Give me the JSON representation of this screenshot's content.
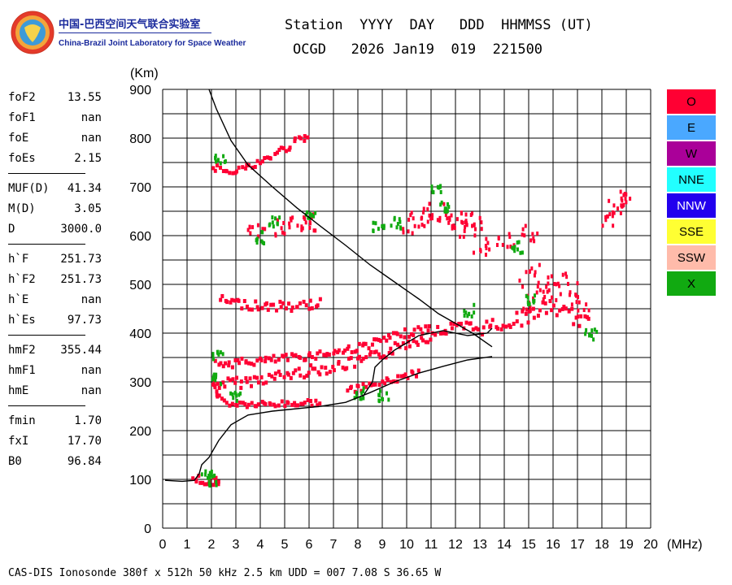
{
  "logo": {
    "title_cn": "中国-巴西空间天气联合实验室",
    "title_en": "China-Brazil Joint Laboratory for Space Weather"
  },
  "header": {
    "labels": "Station  YYYY  DAY   DDD  HHMMSS (UT)",
    "values": "OCGD   2026 Jan19  019  221500"
  },
  "params": [
    {
      "label": "foF2",
      "value": "13.55"
    },
    {
      "label": "foF1",
      "value": "nan"
    },
    {
      "label": "foE",
      "value": "nan"
    },
    {
      "label": "foEs",
      "value": "2.15"
    },
    {
      "sep": true
    },
    {
      "label": "MUF(D)",
      "value": "41.34"
    },
    {
      "label": "M(D)",
      "value": "3.05"
    },
    {
      "label": "D",
      "value": "3000.0"
    },
    {
      "sep": true
    },
    {
      "label": "h`F",
      "value": "251.73"
    },
    {
      "label": "h`F2",
      "value": "251.73"
    },
    {
      "label": "h`E",
      "value": "nan"
    },
    {
      "label": "h`Es",
      "value": "97.73"
    },
    {
      "sep": true
    },
    {
      "label": "hmF2",
      "value": "355.44"
    },
    {
      "label": "hmF1",
      "value": "nan"
    },
    {
      "label": "hmE",
      "value": "nan"
    },
    {
      "sep": true
    },
    {
      "label": "fmin",
      "value": "1.70"
    },
    {
      "label": "fxI",
      "value": "17.70"
    },
    {
      "label": "B0",
      "value": "96.84"
    }
  ],
  "legend": [
    {
      "label": "O",
      "color": "#ff0033",
      "text_color": "#000000"
    },
    {
      "label": "E",
      "color": "#4aa8ff",
      "text_color": "#000000"
    },
    {
      "label": "W",
      "color": "#aa0099",
      "text_color": "#000000"
    },
    {
      "label": "NNE",
      "color": "#22ffff",
      "text_color": "#000000"
    },
    {
      "label": "NNW",
      "color": "#2200ee",
      "text_color": "#ffffff"
    },
    {
      "label": "SSE",
      "color": "#ffff33",
      "text_color": "#000000"
    },
    {
      "label": "SSW",
      "color": "#ffbbaa",
      "text_color": "#000000"
    },
    {
      "label": "X",
      "color": "#11aa11",
      "text_color": "#000000"
    }
  ],
  "footer": "CAS-DIS Ionosonde 380f x 512h 50 kHz 2.5 km UDD = 007 7.08 S 36.65 W",
  "chart_data": {
    "type": "scatter",
    "title": "",
    "xlabel": "(MHz)",
    "ylabel": "(Km)",
    "xlim": [
      0,
      20
    ],
    "ylim": [
      0,
      900
    ],
    "grid": true,
    "x_ticks": [
      0,
      1,
      2,
      3,
      4,
      5,
      6,
      7,
      8,
      9,
      10,
      11,
      12,
      13,
      14,
      15,
      16,
      17,
      18,
      19,
      20
    ],
    "y_ticks": [
      0,
      100,
      200,
      300,
      400,
      500,
      600,
      700,
      800,
      900
    ],
    "traces": [
      {
        "name": "O",
        "color": "#ff0033",
        "shape": "polyline",
        "hw": 7,
        "points": [
          [
            2.0,
            300
          ],
          [
            3,
            302
          ],
          [
            4,
            310
          ],
          [
            5,
            318
          ],
          [
            6,
            327
          ],
          [
            7,
            335
          ],
          [
            8,
            345
          ],
          [
            9,
            362
          ],
          [
            10,
            385
          ],
          [
            11,
            400
          ]
        ]
      },
      {
        "name": "O",
        "color": "#ff0033",
        "shape": "polyline",
        "hw": 5,
        "points": [
          [
            2.1,
            340
          ],
          [
            3,
            343
          ],
          [
            4,
            347
          ],
          [
            5,
            352
          ],
          [
            6,
            358
          ],
          [
            7,
            365
          ],
          [
            8,
            375
          ],
          [
            9,
            390
          ],
          [
            10,
            405
          ],
          [
            11,
            415
          ]
        ]
      },
      {
        "name": "O",
        "color": "#ff0033",
        "shape": "polyline",
        "hw": 4,
        "points": [
          [
            2.1,
            295
          ],
          [
            2.2,
            275
          ],
          [
            2.6,
            260
          ],
          [
            3.5,
            257
          ],
          [
            4.5,
            258
          ],
          [
            5.5,
            260
          ],
          [
            6.5,
            263
          ]
        ]
      },
      {
        "name": "O",
        "color": "#ff0033",
        "shape": "polyline",
        "hw": 4,
        "points": [
          [
            7.5,
            285
          ],
          [
            8.5,
            297
          ],
          [
            9.5,
            310
          ],
          [
            10.5,
            325
          ]
        ]
      },
      {
        "name": "O",
        "color": "#ff0033",
        "shape": "polyline",
        "hw": 9,
        "points": [
          [
            11,
            410
          ],
          [
            12,
            413
          ],
          [
            13,
            415
          ],
          [
            14,
            425
          ],
          [
            15,
            440
          ],
          [
            15.5,
            455
          ],
          [
            16,
            455
          ],
          [
            16.5,
            445
          ],
          [
            17,
            430
          ],
          [
            17.5,
            420
          ]
        ]
      },
      {
        "name": "O",
        "color": "#ff0033",
        "shape": "polyline",
        "hw": 5,
        "points": [
          [
            2.0,
            745
          ],
          [
            2.5,
            740
          ],
          [
            3,
            740
          ],
          [
            3.5,
            745
          ],
          [
            4,
            755
          ],
          [
            4.5,
            770
          ],
          [
            5,
            785
          ],
          [
            5.5,
            798
          ],
          [
            6,
            810
          ]
        ]
      },
      {
        "name": "O",
        "color": "#ff0033",
        "shape": "polyline",
        "hw": 6,
        "points": [
          [
            2.3,
            472
          ],
          [
            3,
            465
          ],
          [
            4,
            460
          ],
          [
            5,
            458
          ],
          [
            6,
            462
          ],
          [
            6.5,
            470
          ]
        ]
      },
      {
        "name": "O",
        "color": "#ff0033",
        "shape": "polyline",
        "hw": 5,
        "points": [
          [
            1.2,
            105
          ],
          [
            1.5,
            103
          ],
          [
            1.8,
            100
          ],
          [
            2.1,
            100
          ],
          [
            2.3,
            103
          ]
        ]
      },
      {
        "name": "O",
        "color": "#ff0033",
        "shape": "cluster",
        "points": [
          [
            10.5,
            640
          ],
          [
            11.2,
            650
          ],
          [
            12.0,
            640
          ],
          [
            12.7,
            630
          ],
          [
            10.2,
            625
          ],
          [
            11.6,
            630
          ],
          [
            12.4,
            615
          ]
        ],
        "r": 10
      },
      {
        "name": "O",
        "color": "#ff0033",
        "shape": "cluster",
        "points": [
          [
            3.8,
            610
          ],
          [
            4.8,
            620
          ],
          [
            5.5,
            625
          ],
          [
            6.0,
            630
          ]
        ],
        "r": 9
      },
      {
        "name": "O",
        "color": "#ff0033",
        "shape": "cluster",
        "points": [
          [
            13,
            580
          ],
          [
            14,
            590
          ],
          [
            15,
            610
          ]
        ],
        "r": 9
      },
      {
        "name": "O",
        "color": "#ff0033",
        "shape": "cluster",
        "points": [
          [
            15.2,
            470
          ],
          [
            15.8,
            485
          ],
          [
            16.5,
            490
          ],
          [
            16.2,
            505
          ],
          [
            15.0,
            520
          ],
          [
            17.1,
            460
          ]
        ],
        "r": 12
      },
      {
        "name": "O",
        "color": "#ff0033",
        "shape": "cluster",
        "points": [
          [
            18.5,
            660
          ],
          [
            19.0,
            680
          ],
          [
            18.2,
            640
          ]
        ],
        "r": 8
      },
      {
        "name": "X",
        "color": "#11aa11",
        "shape": "cluster",
        "points": [
          [
            2.3,
            760
          ],
          [
            2.1,
            310
          ],
          [
            2.2,
            360
          ],
          [
            2.9,
            272
          ],
          [
            4,
            600
          ],
          [
            4.5,
            630
          ],
          [
            6,
            640
          ],
          [
            8.8,
            620
          ],
          [
            9.5,
            630
          ],
          [
            11.5,
            660
          ],
          [
            11.2,
            700
          ],
          [
            14.5,
            580
          ],
          [
            15,
            470
          ],
          [
            17.5,
            400
          ],
          [
            8,
            280
          ],
          [
            9,
            275
          ],
          [
            12.5,
            450
          ],
          [
            1.8,
            110
          ],
          [
            2.0,
            102
          ]
        ],
        "r": 6
      }
    ],
    "traced_curves": [
      {
        "name": "virtual-height trace",
        "points": [
          [
            1.9,
            900
          ],
          [
            2.2,
            860
          ],
          [
            2.8,
            795
          ],
          [
            3.5,
            745
          ],
          [
            4.5,
            700
          ],
          [
            5.5,
            657
          ],
          [
            6.5,
            618
          ],
          [
            7.5,
            580
          ],
          [
            8.5,
            540
          ],
          [
            9.5,
            505
          ],
          [
            10.5,
            470
          ],
          [
            11.3,
            440
          ],
          [
            12,
            420
          ],
          [
            12.7,
            400
          ],
          [
            13.5,
            372
          ]
        ]
      },
      {
        "name": "true-height profile",
        "points": [
          [
            0.1,
            98
          ],
          [
            0.8,
            96
          ],
          [
            1.3,
            98
          ],
          [
            1.5,
            112
          ],
          [
            1.6,
            130
          ],
          [
            1.9,
            145
          ],
          [
            2.3,
            180
          ],
          [
            2.8,
            212
          ],
          [
            3.5,
            232
          ],
          [
            4.5,
            240
          ],
          [
            5.5,
            245
          ],
          [
            6.5,
            250
          ],
          [
            7.5,
            258
          ],
          [
            8.5,
            278
          ],
          [
            9.5,
            300
          ],
          [
            10.5,
            318
          ],
          [
            11.5,
            332
          ],
          [
            12.5,
            345
          ],
          [
            13.5,
            352
          ]
        ]
      },
      {
        "name": "extraordinary trace",
        "points": [
          [
            8.2,
            270
          ],
          [
            8.6,
            300
          ],
          [
            8.7,
            330
          ],
          [
            9,
            345
          ],
          [
            9.5,
            365
          ],
          [
            10,
            380
          ],
          [
            10.5,
            395
          ],
          [
            11,
            400
          ],
          [
            11.5,
            405
          ],
          [
            12.5,
            395
          ],
          [
            13.3,
            400
          ],
          [
            13.5,
            410
          ]
        ]
      }
    ]
  }
}
